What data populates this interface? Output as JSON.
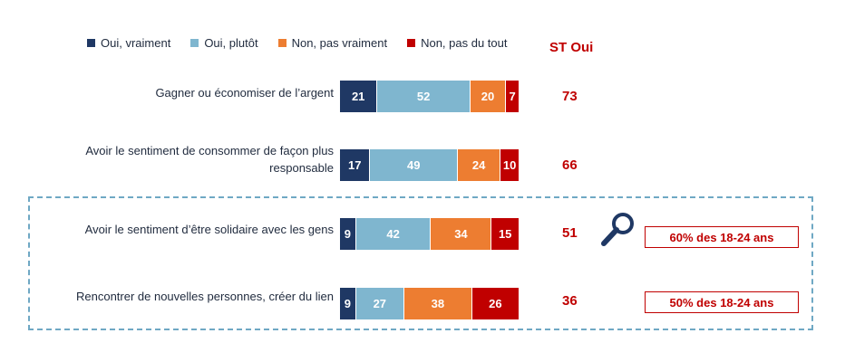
{
  "chart_data": {
    "type": "bar",
    "orientation": "horizontal-stacked",
    "legend_position": "top",
    "series": [
      {
        "name": "Oui, vraiment",
        "color": "#1f3864"
      },
      {
        "name": "Oui, plutôt",
        "color": "#7fb6cf"
      },
      {
        "name": "Non, pas vraiment",
        "color": "#ed7d31"
      },
      {
        "name": "Non, pas du tout",
        "color": "#c00000"
      }
    ],
    "total_header": "ST Oui",
    "rows": [
      {
        "label_lines": [
          "Gagner ou économiser de l’argent"
        ],
        "values": [
          21,
          52,
          20,
          7
        ],
        "total": "73",
        "note": ""
      },
      {
        "label_lines": [
          "Avoir le sentiment de consommer de façon plus",
          "responsable"
        ],
        "values": [
          17,
          49,
          24,
          10
        ],
        "total": "66",
        "note": ""
      },
      {
        "label_lines": [
          "Avoir le sentiment d’être solidaire avec les gens"
        ],
        "values": [
          9,
          42,
          34,
          15
        ],
        "total": "51",
        "note": "60% des 18-24 ans"
      },
      {
        "label_lines": [
          "Rencontrer de nouvelles personnes, créer du lien"
        ],
        "values": [
          9,
          27,
          38,
          26
        ],
        "total": "36",
        "note": "50% des 18-24 ans"
      }
    ],
    "icon": "magnifier-icon"
  }
}
